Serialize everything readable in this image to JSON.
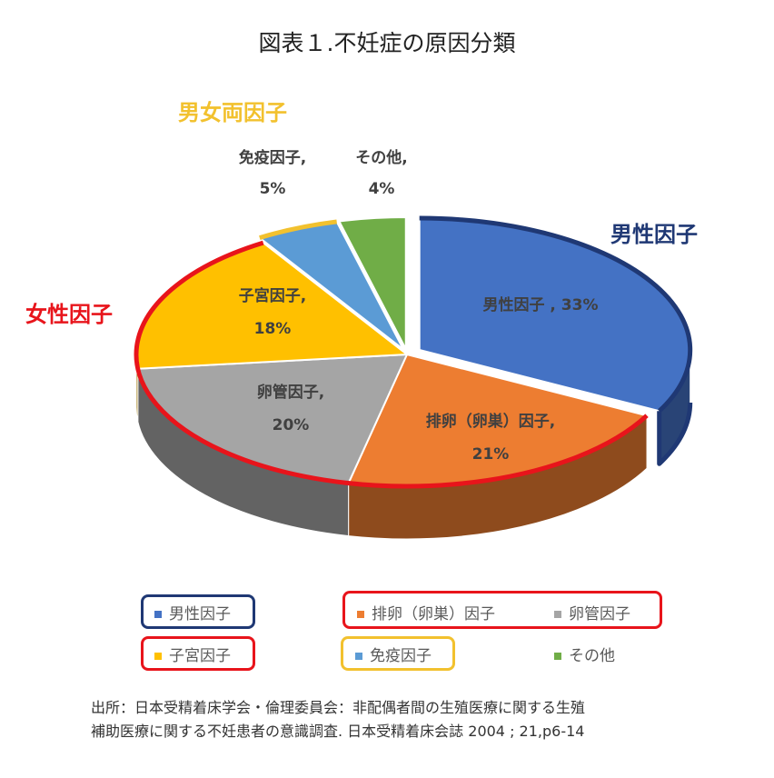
{
  "title": "図表１.不妊症の原因分類",
  "groups": {
    "male": "男性因子",
    "female": "女性因子",
    "both": "男女両因子"
  },
  "colors": {
    "male": "#4472C4",
    "ovulation": "#ED7D31",
    "tubal": "#A5A5A5",
    "uterine": "#FFC000",
    "immune": "#5B9BD5",
    "other": "#70AD47",
    "male_outline": "#1F3874",
    "female_outline": "#E8141B",
    "both_outline": "#F2C12E"
  },
  "data_labels": {
    "male": {
      "name": "男性因子 ,",
      "pct": "33%"
    },
    "ovulation": {
      "name": "排卵（卵巣）因子,",
      "pct": "21%"
    },
    "tubal": {
      "name": "卵管因子,",
      "pct": "20%"
    },
    "uterine": {
      "name": "子宮因子,",
      "pct": "18%"
    },
    "immune": {
      "name": "免疫因子,",
      "pct": "5%"
    },
    "other": {
      "name": "その他,",
      "pct": "4%"
    }
  },
  "chart_data": {
    "type": "pie",
    "title": "図表１.不妊症の原因分類",
    "categories": [
      "男性因子",
      "排卵（卵巣）因子",
      "卵管因子",
      "子宮因子",
      "免疫因子",
      "その他"
    ],
    "values": [
      33,
      21,
      20,
      18,
      5,
      4
    ],
    "unit": "%",
    "legend_position": "bottom"
  },
  "legend": [
    "男性因子",
    "排卵（卵巣）因子",
    "卵管因子",
    "子宮因子",
    "免疫因子",
    "その他"
  ],
  "source": {
    "line1": "出所：日本受精着床学会・倫理委員会：非配偶者間の生殖医療に関する生殖",
    "line2": "補助医療に関する不妊患者の意識調査. 日本受精着床会誌 2004 ; 21,p6-14"
  }
}
